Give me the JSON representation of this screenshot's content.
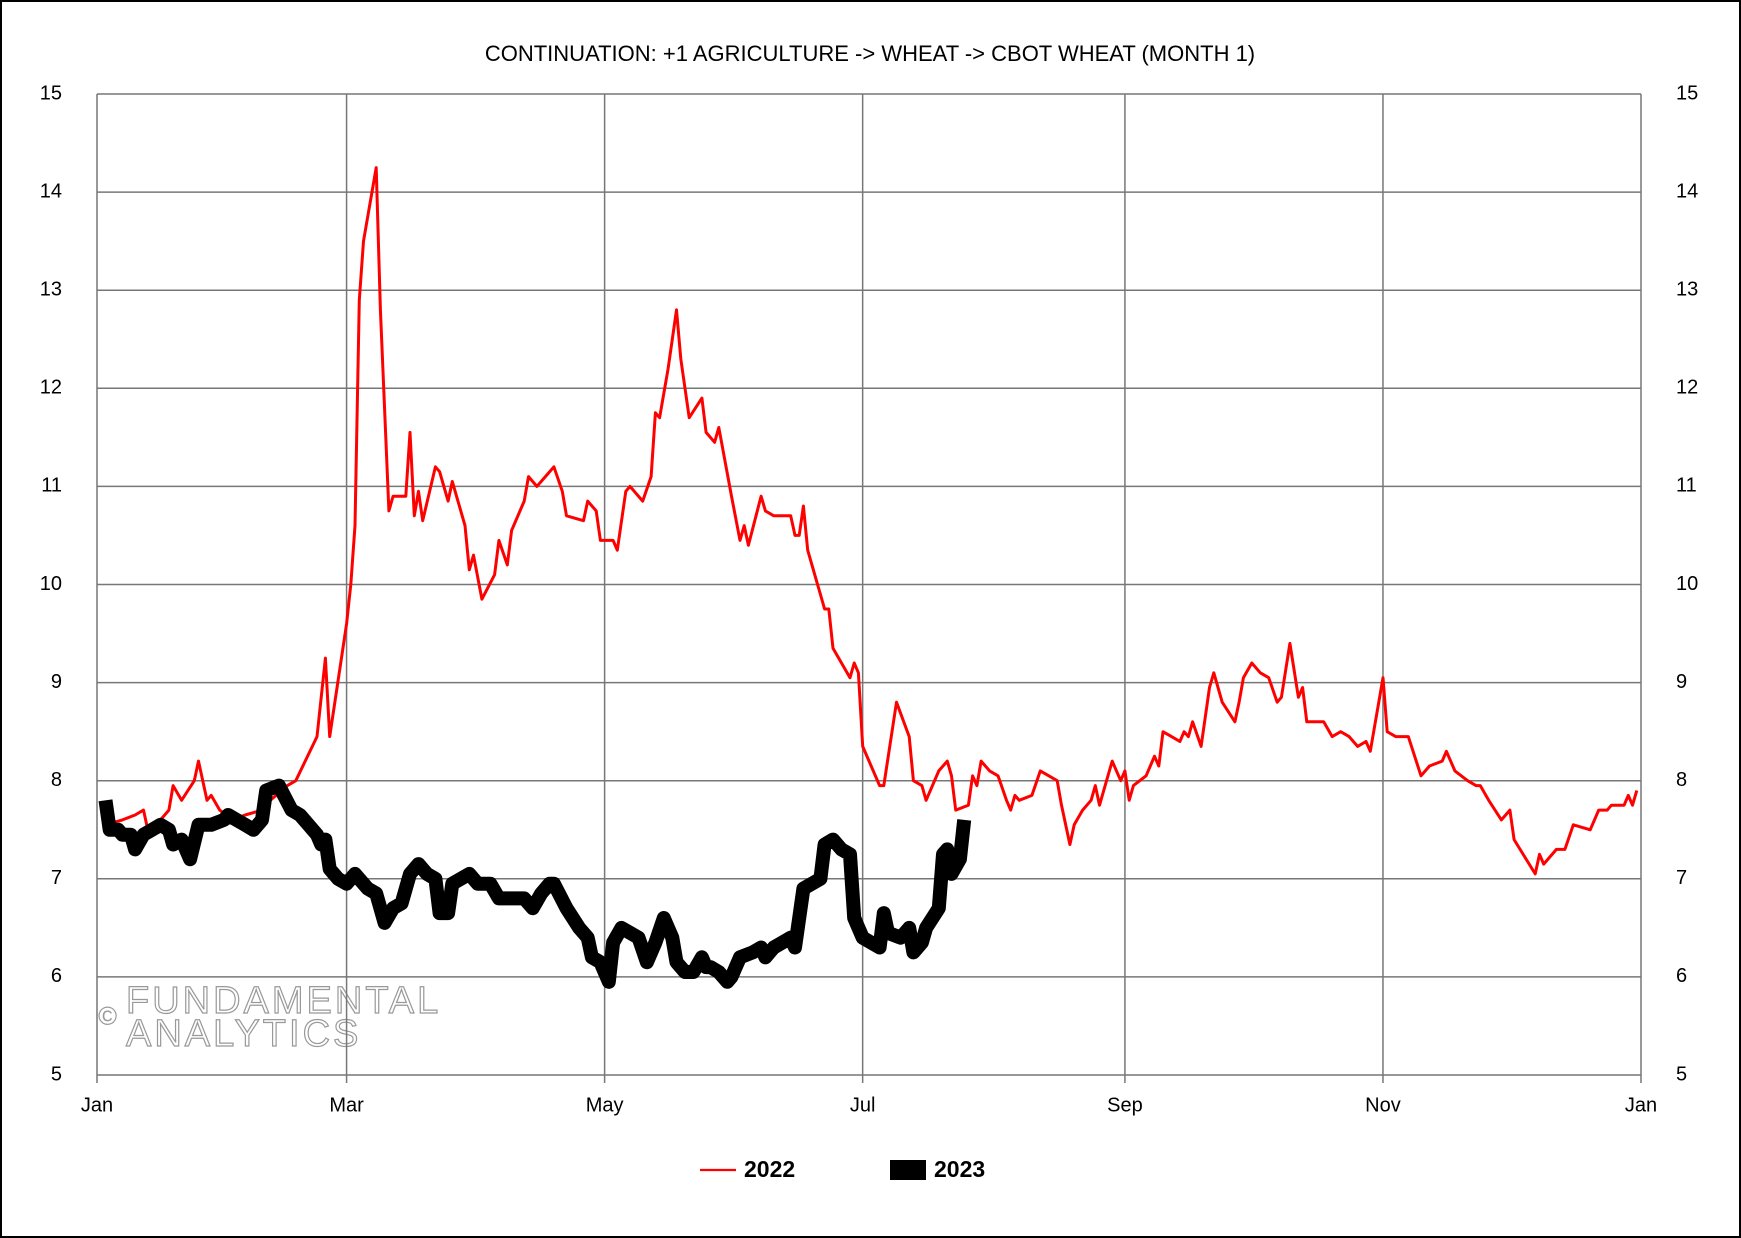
{
  "chart_data": {
    "type": "line",
    "title": "CONTINUATION: +1 AGRICULTURE -> WHEAT -> CBOT WHEAT (MONTH 1)",
    "watermark": [
      "©",
      "FUNDAMENTAL",
      "ANALYTICS"
    ],
    "xlim": [
      0,
      365
    ],
    "xticks": [
      {
        "value": 0,
        "label": "Jan"
      },
      {
        "value": 59,
        "label": "Mar"
      },
      {
        "value": 120,
        "label": "May"
      },
      {
        "value": 181,
        "label": "Jul"
      },
      {
        "value": 243,
        "label": "Sep"
      },
      {
        "value": 304,
        "label": "Nov"
      },
      {
        "value": 365,
        "label": "Jan"
      }
    ],
    "ylim": [
      5,
      15
    ],
    "yticks": [
      5,
      6,
      7,
      8,
      9,
      10,
      11,
      12,
      13,
      14,
      15
    ],
    "right_axis": true,
    "grid": true,
    "legend": "bottom",
    "series": [
      {
        "name": "2022",
        "color": "#ff0000",
        "width": 3,
        "x": [
          2,
          6,
          9,
          11,
          12,
          15,
          17,
          18,
          20,
          23,
          24,
          26,
          27,
          29,
          32,
          35,
          39,
          41,
          45,
          47,
          52,
          54,
          55,
          59,
          60,
          61,
          62,
          63,
          66,
          67,
          69,
          70,
          73,
          74,
          75,
          76,
          77,
          80,
          81,
          83,
          84,
          87,
          88,
          89,
          91,
          94,
          95,
          97,
          98,
          101,
          102,
          104,
          106,
          108,
          110,
          111,
          115,
          116,
          118,
          119,
          122,
          123,
          125,
          126,
          129,
          131,
          132,
          133,
          135,
          137,
          138,
          140,
          143,
          144,
          146,
          147,
          150,
          152,
          153,
          154,
          157,
          158,
          160,
          164,
          165,
          166,
          167,
          168,
          172,
          173,
          174,
          176,
          178,
          179,
          180,
          181,
          185,
          186,
          189,
          192,
          193,
          195,
          196,
          199,
          200,
          201,
          202,
          203,
          206,
          207,
          208,
          209,
          211,
          213,
          215,
          216,
          217,
          218,
          221,
          223,
          225,
          227,
          228,
          230,
          231,
          233,
          235,
          236,
          237,
          240,
          242,
          243,
          244,
          245,
          248,
          250,
          251,
          252,
          254,
          256,
          257,
          258,
          259,
          261,
          263,
          264,
          266,
          269,
          270,
          271,
          273,
          275,
          277,
          279,
          280,
          282,
          284,
          285,
          286,
          290,
          292,
          294,
          296,
          298,
          300,
          301,
          304,
          305,
          307,
          310,
          313,
          315,
          318,
          319,
          321,
          324,
          326,
          327,
          329,
          332,
          334,
          335,
          340,
          341,
          342,
          345,
          347,
          349,
          353,
          355,
          357,
          358,
          361,
          362,
          363,
          364
        ],
        "values": [
          7.55,
          7.6,
          7.65,
          7.7,
          7.5,
          7.6,
          7.7,
          7.95,
          7.8,
          8.0,
          8.2,
          7.8,
          7.85,
          7.7,
          7.6,
          7.65,
          7.7,
          7.8,
          7.95,
          8.0,
          8.45,
          9.25,
          8.45,
          9.6,
          10.0,
          10.6,
          12.9,
          13.5,
          14.25,
          12.8,
          10.75,
          10.9,
          10.9,
          11.55,
          10.7,
          10.95,
          10.65,
          11.2,
          11.15,
          10.85,
          11.05,
          10.6,
          10.15,
          10.3,
          9.85,
          10.1,
          10.45,
          10.2,
          10.55,
          10.85,
          11.1,
          11.0,
          11.1,
          11.2,
          10.95,
          10.7,
          10.65,
          10.85,
          10.75,
          10.45,
          10.45,
          10.35,
          10.95,
          11.0,
          10.85,
          11.1,
          11.75,
          11.7,
          12.2,
          12.8,
          12.3,
          11.7,
          11.9,
          11.55,
          11.45,
          11.6,
          10.9,
          10.45,
          10.6,
          10.4,
          10.9,
          10.75,
          10.7,
          10.7,
          10.5,
          10.5,
          10.8,
          10.35,
          9.75,
          9.75,
          9.35,
          9.2,
          9.05,
          9.2,
          9.1,
          8.35,
          7.95,
          7.95,
          8.8,
          8.45,
          8.0,
          7.95,
          7.8,
          8.1,
          8.15,
          8.2,
          8.05,
          7.7,
          7.75,
          8.05,
          7.95,
          8.2,
          8.1,
          8.05,
          7.8,
          7.7,
          7.85,
          7.8,
          7.85,
          8.1,
          8.05,
          8.0,
          7.75,
          7.35,
          7.55,
          7.7,
          7.8,
          7.95,
          7.75,
          8.2,
          8.0,
          8.1,
          7.8,
          7.95,
          8.05,
          8.25,
          8.15,
          8.5,
          8.45,
          8.4,
          8.5,
          8.45,
          8.6,
          8.35,
          8.95,
          9.1,
          8.8,
          8.6,
          8.8,
          9.05,
          9.2,
          9.1,
          9.05,
          8.8,
          8.85,
          9.4,
          8.85,
          8.95,
          8.6,
          8.6,
          8.45,
          8.5,
          8.45,
          8.35,
          8.4,
          8.3,
          9.05,
          8.5,
          8.45,
          8.45,
          8.05,
          8.15,
          8.2,
          8.3,
          8.1,
          8.0,
          7.95,
          7.95,
          7.8,
          7.6,
          7.7,
          7.4,
          7.05,
          7.25,
          7.15,
          7.3,
          7.3,
          7.55,
          7.5,
          7.7,
          7.7,
          7.75,
          7.75,
          7.85,
          7.75,
          7.9
        ]
      },
      {
        "name": "2023",
        "color": "#000000",
        "width": 14,
        "x": [
          2,
          3,
          5,
          6,
          8,
          9,
          11,
          13,
          15,
          17,
          18,
          20,
          22,
          24,
          27,
          30,
          31,
          33,
          35,
          37,
          39,
          40,
          43,
          46,
          48,
          50,
          52,
          53,
          54,
          55,
          57,
          59,
          61,
          64,
          66,
          68,
          70,
          72,
          74,
          76,
          78,
          80,
          81,
          83,
          84,
          86,
          88,
          90,
          91,
          93,
          95,
          97,
          100,
          101,
          103,
          105,
          107,
          108,
          111,
          114,
          116,
          117,
          119,
          121,
          122,
          124,
          126,
          128,
          130,
          132,
          134,
          136,
          137,
          139,
          141,
          143,
          144,
          145,
          147,
          149,
          150,
          152,
          155,
          157,
          158,
          160,
          162,
          164,
          165,
          167,
          169,
          171,
          172,
          174,
          176,
          178,
          179,
          181,
          185,
          186,
          187,
          190,
          192,
          193,
          195,
          196,
          199,
          200,
          201,
          202,
          204,
          205
        ],
        "values": [
          7.8,
          7.5,
          7.5,
          7.45,
          7.45,
          7.3,
          7.45,
          7.5,
          7.55,
          7.5,
          7.35,
          7.4,
          7.2,
          7.55,
          7.55,
          7.6,
          7.65,
          7.6,
          7.55,
          7.5,
          7.6,
          7.9,
          7.95,
          7.7,
          7.65,
          7.55,
          7.45,
          7.35,
          7.4,
          7.1,
          7.0,
          6.95,
          7.05,
          6.9,
          6.85,
          6.55,
          6.7,
          6.75,
          7.05,
          7.15,
          7.05,
          7.0,
          6.65,
          6.65,
          6.95,
          7.0,
          7.05,
          6.95,
          6.95,
          6.95,
          6.8,
          6.8,
          6.8,
          6.8,
          6.7,
          6.85,
          6.95,
          6.95,
          6.7,
          6.5,
          6.4,
          6.2,
          6.15,
          5.95,
          6.35,
          6.5,
          6.45,
          6.4,
          6.15,
          6.35,
          6.6,
          6.4,
          6.15,
          6.05,
          6.05,
          6.2,
          6.1,
          6.1,
          6.05,
          5.95,
          6.0,
          6.2,
          6.25,
          6.3,
          6.2,
          6.3,
          6.35,
          6.4,
          6.3,
          6.9,
          6.95,
          7.0,
          7.35,
          7.4,
          7.3,
          7.25,
          6.6,
          6.4,
          6.3,
          6.65,
          6.45,
          6.4,
          6.5,
          6.25,
          6.35,
          6.5,
          6.7,
          7.25,
          7.3,
          7.05,
          7.2,
          7.6
        ]
      }
    ]
  }
}
